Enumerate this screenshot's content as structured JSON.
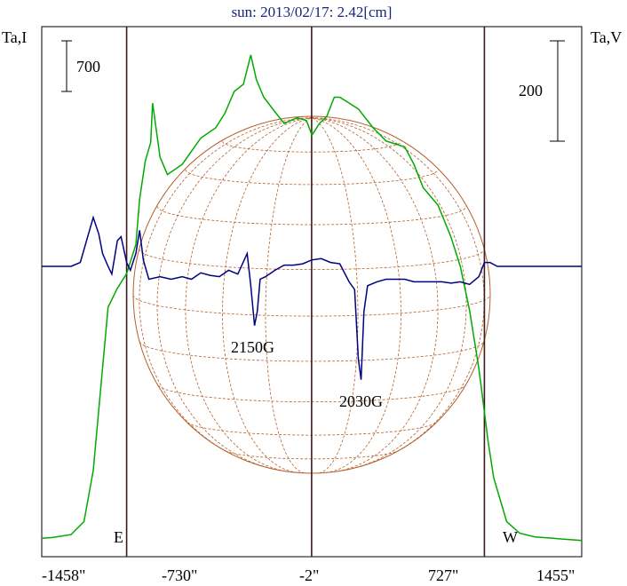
{
  "chart_data": {
    "type": "line",
    "title": "sun: 2013/02/17: 2.42[cm]",
    "left_axis_label": "Ta,I",
    "right_axis_label": "Ta,V",
    "scale_bar_left": "700",
    "scale_bar_right": "200",
    "x_tick_labels": [
      "-1458\"",
      "-730\"",
      "-2\"",
      "727\"",
      "1455\""
    ],
    "xlim": [
      -1458,
      1455
    ],
    "limb_labels": {
      "east": "E",
      "west": "W"
    },
    "vertical_lines_x": [
      -1000,
      -2,
      930
    ],
    "annotations": [
      {
        "text": "2150G",
        "x": -300
      },
      {
        "text": "2030G",
        "x": 260
      }
    ],
    "colors": {
      "stokes_I": "#00aa00",
      "stokes_V": "#000080",
      "frame": "#000000",
      "vlines": "#3e1a1a",
      "disk": "#b4602c",
      "title": "#1a237e"
    },
    "series": [
      {
        "key": "I",
        "points": [
          [
            -1458,
            35
          ],
          [
            -1400,
            40
          ],
          [
            -1300,
            60
          ],
          [
            -1230,
            150
          ],
          [
            -1180,
            500
          ],
          [
            -1100,
            1620
          ],
          [
            -1050,
            1750
          ],
          [
            -1000,
            1850
          ],
          [
            -950,
            2050
          ],
          [
            -930,
            2360
          ],
          [
            -900,
            2620
          ],
          [
            -870,
            2750
          ],
          [
            -860,
            3020
          ],
          [
            -820,
            2650
          ],
          [
            -780,
            2530
          ],
          [
            -700,
            2600
          ],
          [
            -600,
            2780
          ],
          [
            -520,
            2850
          ],
          [
            -470,
            2950
          ],
          [
            -420,
            3100
          ],
          [
            -370,
            3150
          ],
          [
            -330,
            3350
          ],
          [
            -300,
            3180
          ],
          [
            -260,
            3060
          ],
          [
            -200,
            2960
          ],
          [
            -150,
            2880
          ],
          [
            -80,
            2920
          ],
          [
            -30,
            2900
          ],
          [
            0,
            2800
          ],
          [
            40,
            2880
          ],
          [
            80,
            2930
          ],
          [
            120,
            3060
          ],
          [
            150,
            3060
          ],
          [
            200,
            3020
          ],
          [
            250,
            2980
          ],
          [
            330,
            2850
          ],
          [
            400,
            2760
          ],
          [
            450,
            2740
          ],
          [
            500,
            2720
          ],
          [
            550,
            2600
          ],
          [
            600,
            2440
          ],
          [
            680,
            2320
          ],
          [
            750,
            2100
          ],
          [
            800,
            1900
          ],
          [
            850,
            1600
          ],
          [
            900,
            1200
          ],
          [
            950,
            700
          ],
          [
            980,
            450
          ],
          [
            1050,
            150
          ],
          [
            1120,
            70
          ],
          [
            1200,
            45
          ],
          [
            1300,
            35
          ],
          [
            1400,
            25
          ],
          [
            1455,
            20
          ]
        ]
      },
      {
        "key": "V",
        "points": [
          [
            -1458,
            0
          ],
          [
            -1300,
            0
          ],
          [
            -1250,
            3
          ],
          [
            -1200,
            28
          ],
          [
            -1180,
            38
          ],
          [
            -1150,
            25
          ],
          [
            -1130,
            10
          ],
          [
            -1100,
            0
          ],
          [
            -1080,
            -6
          ],
          [
            -1050,
            20
          ],
          [
            -1030,
            23
          ],
          [
            -1000,
            3
          ],
          [
            -980,
            -3
          ],
          [
            -950,
            10
          ],
          [
            -930,
            28
          ],
          [
            -910,
            5
          ],
          [
            -880,
            -10
          ],
          [
            -820,
            -8
          ],
          [
            -760,
            -10
          ],
          [
            -700,
            -8
          ],
          [
            -650,
            -10
          ],
          [
            -600,
            -5
          ],
          [
            -550,
            -7
          ],
          [
            -500,
            -8
          ],
          [
            -450,
            -3
          ],
          [
            -400,
            -6
          ],
          [
            -350,
            10
          ],
          [
            -330,
            -15
          ],
          [
            -310,
            -46
          ],
          [
            -295,
            -35
          ],
          [
            -280,
            -10
          ],
          [
            -250,
            -8
          ],
          [
            -200,
            -3
          ],
          [
            -150,
            1
          ],
          [
            -100,
            1
          ],
          [
            -50,
            2
          ],
          [
            -2,
            5
          ],
          [
            50,
            6
          ],
          [
            100,
            3
          ],
          [
            150,
            2
          ],
          [
            200,
            -12
          ],
          [
            230,
            -18
          ],
          [
            250,
            -72
          ],
          [
            265,
            -88
          ],
          [
            280,
            -35
          ],
          [
            300,
            -15
          ],
          [
            350,
            -12
          ],
          [
            400,
            -10
          ],
          [
            450,
            -10
          ],
          [
            500,
            -10
          ],
          [
            550,
            -12
          ],
          [
            600,
            -12
          ],
          [
            650,
            -12
          ],
          [
            700,
            -12
          ],
          [
            750,
            -13
          ],
          [
            800,
            -12
          ],
          [
            850,
            -14
          ],
          [
            900,
            -8
          ],
          [
            930,
            3
          ],
          [
            960,
            3
          ],
          [
            1000,
            0
          ],
          [
            1100,
            0
          ],
          [
            1200,
            0
          ],
          [
            1300,
            0
          ],
          [
            1455,
            0
          ]
        ]
      }
    ]
  }
}
